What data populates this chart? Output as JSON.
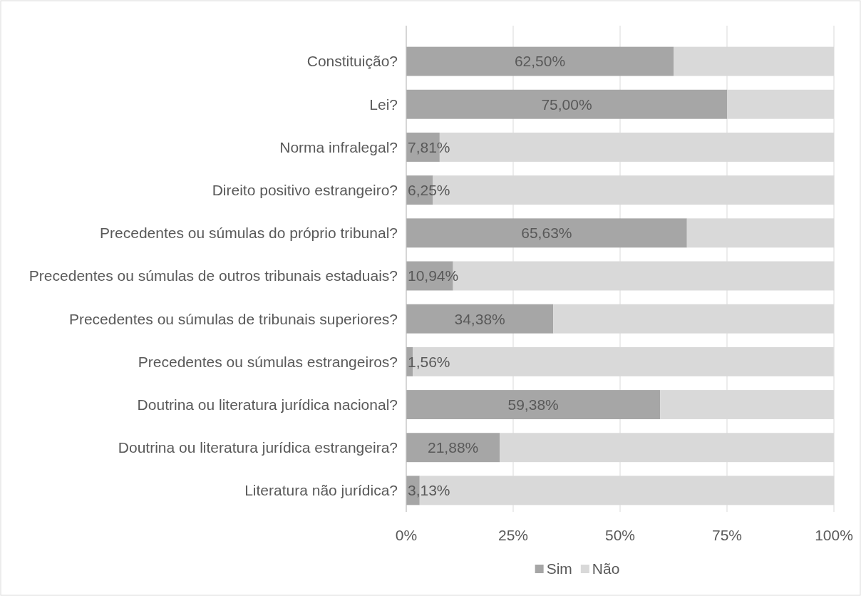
{
  "chart_data": {
    "type": "bar",
    "orientation": "horizontal",
    "stacked": true,
    "categories": [
      "Constituição?",
      "Lei?",
      "Norma infralegal?",
      "Direito positivo estrangeiro?",
      "Precedentes ou súmulas do próprio tribunal?",
      "Precedentes ou súmulas de outros tribunais estaduais?",
      "Precedentes ou súmulas de tribunais superiores?",
      "Precedentes ou súmulas estrangeiros?",
      "Doutrina ou literatura jurídica nacional?",
      "Doutrina ou literatura jurídica estrangeira?",
      "Literatura não jurídica?"
    ],
    "series": [
      {
        "name": "Sim",
        "color": "#a6a6a6",
        "values": [
          62.5,
          75,
          7.81,
          6.25,
          65.63,
          10.94,
          34.38,
          1.56,
          59.38,
          21.88,
          3.13
        ],
        "value_labels": [
          "62,50%",
          "75,00%",
          "7,81%",
          "6,25%",
          "65,63%",
          "10,94%",
          "34,38%",
          "1,56%",
          "59,38%",
          "21,88%",
          "3,13%"
        ]
      },
      {
        "name": "Não",
        "color": "#d9d9d9",
        "values": [
          37.5,
          25,
          92.2,
          93.8,
          34.4,
          89.1,
          65.6,
          98.4,
          40.6,
          78.1,
          96.9
        ]
      }
    ],
    "xlim": [
      0,
      100
    ],
    "xticks": [
      {
        "value": 0,
        "label": "0%"
      },
      {
        "value": 25,
        "label": "25%"
      },
      {
        "value": 50,
        "label": "50%"
      },
      {
        "value": 75,
        "label": "75%"
      },
      {
        "value": 100,
        "label": "100%"
      }
    ],
    "grid": "x",
    "legend": "bottom"
  }
}
